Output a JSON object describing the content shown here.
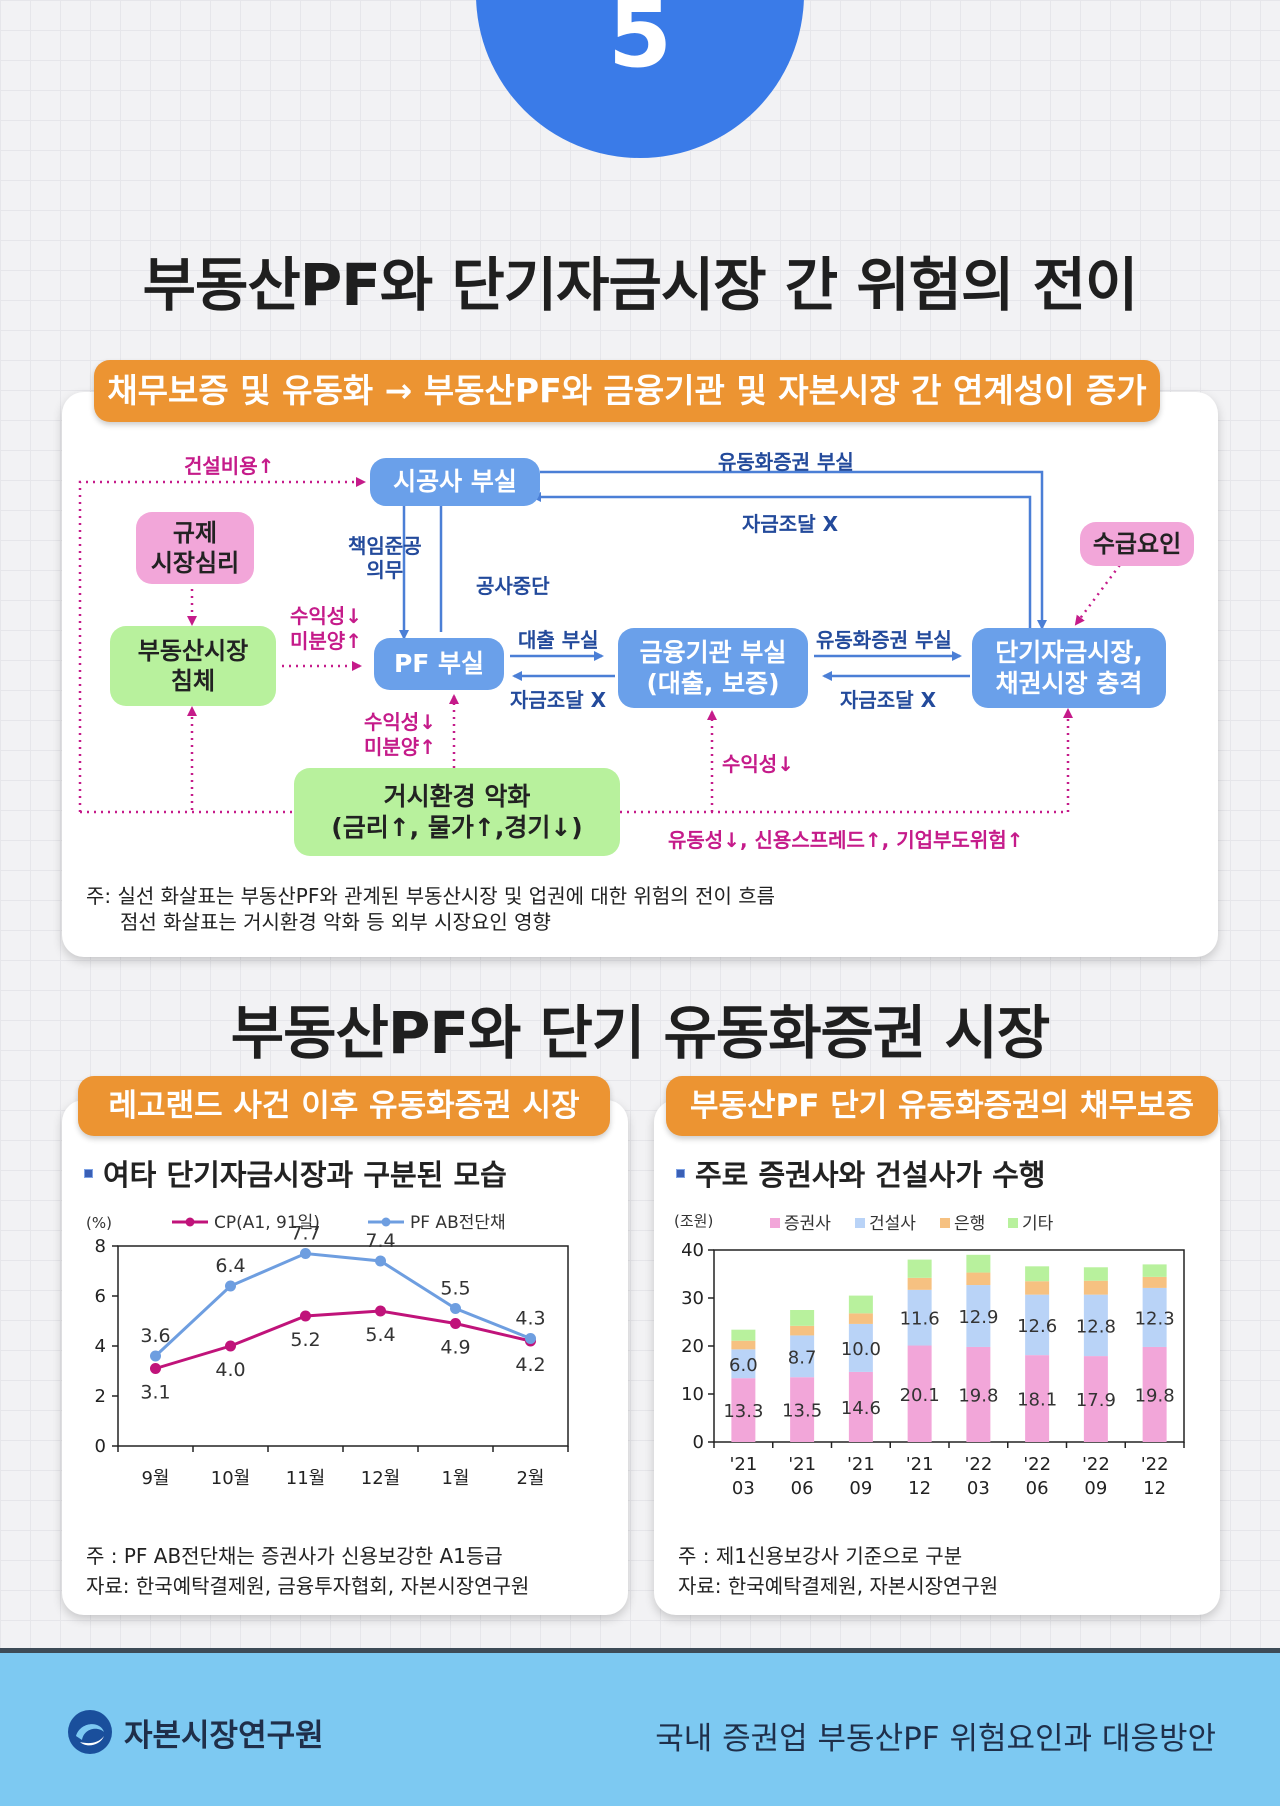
{
  "page_number": "5",
  "section1": {
    "title": "부동산PF와 단기자금시장 간 위험의 전이",
    "banner": "채무보증 및 유동화 → 부동산PF와 금융기관 및 자본시장 간 연계성이 증가",
    "diagram": {
      "boxes": {
        "builder": "시공사 부실",
        "regulation": "규제\n시장심리",
        "re_market": "부동산시장\n침체",
        "pf": "PF 부실",
        "financial": "금융기관 부실\n(대출, 보증)",
        "short_term": "단기자금시장,\n채권시장 충격",
        "supply_demand": "수급요인",
        "macro": "거시환경 악화\n(금리↑, 물가↑,경기↓)"
      },
      "labels": {
        "construction_cost": "건설비용↑",
        "abs_default_top": "유동화증권 부실",
        "funding_x_top": "자금조달 X",
        "completion_duty": "책임준공\n의무",
        "work_stop": "공사중단",
        "profit_unsold_1": "수익성↓\n미분양↑",
        "loan_default": "대출 부실",
        "funding_x_mid": "자금조달 X",
        "abs_default_mid": "유동화증권 부실",
        "funding_x_right": "자금조달 X",
        "profit_unsold_2": "수익성↓\n미분양↑",
        "profitability": "수익성↓",
        "liquidity_line": "유동성↓, 신용스프레드↑, 기업부도위험↑"
      },
      "note_line1": "주: 실선 화살표는 부동산PF와 관계된 부동산시장 및 업권에 대한 위험의 전이 흐름",
      "note_line2": "점선 화살표는 거시환경 악화 등 외부 시장요인 영향"
    }
  },
  "section2": {
    "title": "부동산PF와 단기 유동화증권 시장",
    "left": {
      "banner": "레고랜드 사건 이후 유동화증권 시장",
      "subtitle": "여타 단기자금시장과 구분된 모습",
      "note_line1": "주   :  PF AB전단채는 증권사가 신용보강한 A1등급",
      "note_line2": "자료: 한국예탁결제원, 금융투자협회, 자본시장연구원"
    },
    "right": {
      "banner": "부동산PF 단기 유동화증권의 채무보증",
      "subtitle": "주로 증권사와 건설사가 수행",
      "note_line1": "주   :  제1신용보강사 기준으로 구분",
      "note_line2": "자료: 한국예탁결제원, 자본시장연구원"
    }
  },
  "chart_data": [
    {
      "type": "line",
      "title": "여타 단기자금시장과 구분된 모습",
      "ylabel": "(%)",
      "xlabel": "",
      "ylim": [
        0,
        8
      ],
      "yticks": [
        0,
        2,
        4,
        6,
        8
      ],
      "categories": [
        "9월",
        "10월",
        "11월",
        "12월",
        "1월",
        "2월"
      ],
      "series": [
        {
          "name": "CP(A1, 91일)",
          "values": [
            3.1,
            4.0,
            5.2,
            5.4,
            4.9,
            4.2
          ],
          "color": "#c0137a"
        },
        {
          "name": "PF AB전단채",
          "values": [
            3.6,
            6.4,
            7.7,
            7.4,
            5.5,
            4.3
          ],
          "color": "#6e9ee0"
        }
      ],
      "legend": "top",
      "grid": false
    },
    {
      "type": "bar",
      "stacked": true,
      "title": "주로 증권사와 건설사가 수행",
      "ylabel": "(조원)",
      "xlabel": "",
      "ylim": [
        0,
        40
      ],
      "yticks": [
        0,
        10,
        20,
        30,
        40
      ],
      "categories": [
        "'21\n03",
        "'21\n06",
        "'21\n09",
        "'21\n12",
        "'22\n03",
        "'22\n06",
        "'22\n09",
        "'22\n12"
      ],
      "series": [
        {
          "name": "증권사",
          "values": [
            13.3,
            13.5,
            14.6,
            20.1,
            19.8,
            18.1,
            17.9,
            19.8
          ],
          "color": "#f2a6d9",
          "labeled": true
        },
        {
          "name": "건설사",
          "values": [
            6.0,
            8.7,
            10.0,
            11.6,
            12.9,
            12.6,
            12.8,
            12.3
          ],
          "color": "#b9d3f7",
          "labeled": true
        },
        {
          "name": "은행",
          "values": [
            1.8,
            2.0,
            2.2,
            2.5,
            2.6,
            2.8,
            2.9,
            2.3
          ],
          "color": "#f6c181",
          "labeled": false
        },
        {
          "name": "기타",
          "values": [
            2.3,
            3.3,
            3.7,
            3.8,
            3.7,
            3.1,
            2.8,
            2.6
          ],
          "color": "#b8f19d",
          "labeled": false
        }
      ],
      "legend": "top",
      "grid": false
    }
  ]
}
